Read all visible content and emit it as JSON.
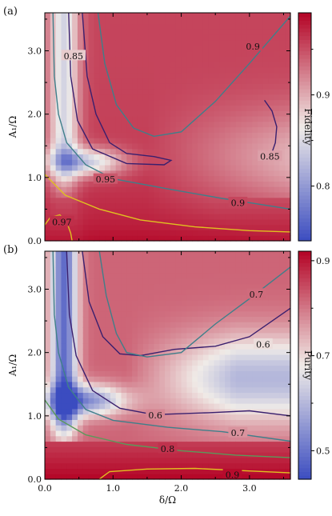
{
  "colors": {
    "map_low": "#3b4cc0",
    "map_mid": "#f0ece8",
    "map_high": "#b40426",
    "contour_low": "#3a1f6e",
    "contour_mid": "#3f7f8a",
    "contour_green": "#5a9a5a",
    "contour_high": "#e0c020"
  },
  "chart_data": [
    {
      "type": "heatmap",
      "panel_label": "(a)",
      "xlabel": "",
      "ylabel": "A₁/Ω",
      "colorbar_label": "Fidelity",
      "xlim": [
        0.0,
        3.6
      ],
      "ylim": [
        0.0,
        3.6
      ],
      "color_range": [
        0.74,
        0.99
      ],
      "x_ticks": [],
      "y_ticks": [
        {
          "value": 0.0,
          "label": "0.0"
        },
        {
          "value": 1.0,
          "label": "1.0"
        },
        {
          "value": 2.0,
          "label": "2.0"
        },
        {
          "value": 3.0,
          "label": "3.0"
        }
      ],
      "colorbar_ticks": [
        {
          "value": 0.8,
          "label": "0.8"
        },
        {
          "value": 0.85,
          "label": ""
        },
        {
          "value": 0.9,
          "label": "0.9"
        },
        {
          "value": 0.95,
          "label": ""
        }
      ],
      "contour_labels": [
        {
          "text": "0.85",
          "x": 0.42,
          "y": 2.92
        },
        {
          "text": "0.9",
          "x": 3.05,
          "y": 3.07
        },
        {
          "text": "0.85",
          "x": 3.3,
          "y": 1.33
        },
        {
          "text": "0.95",
          "x": 0.89,
          "y": 0.97
        },
        {
          "text": "0.9",
          "x": 2.83,
          "y": 0.6
        },
        {
          "text": "0.97",
          "x": 0.25,
          "y": 0.3
        }
      ]
    },
    {
      "type": "heatmap",
      "panel_label": "(b)",
      "xlabel": "δ/Ω",
      "ylabel": "A₁/Ω",
      "colorbar_label": "Purity",
      "xlim": [
        0.0,
        3.6
      ],
      "ylim": [
        0.0,
        3.6
      ],
      "color_range": [
        0.44,
        0.92
      ],
      "x_ticks": [
        {
          "value": 0.0,
          "label": "0.0"
        },
        {
          "value": 1.0,
          "label": "1.0"
        },
        {
          "value": 2.0,
          "label": "2.0"
        },
        {
          "value": 3.0,
          "label": "3.0"
        }
      ],
      "y_ticks": [
        {
          "value": 0.0,
          "label": "0.0"
        },
        {
          "value": 1.0,
          "label": "1.0"
        },
        {
          "value": 2.0,
          "label": "2.0"
        },
        {
          "value": 3.0,
          "label": "3.0"
        }
      ],
      "colorbar_ticks": [
        {
          "value": 0.5,
          "label": "0.5"
        },
        {
          "value": 0.6,
          "label": ""
        },
        {
          "value": 0.7,
          "label": "0.7"
        },
        {
          "value": 0.8,
          "label": ""
        },
        {
          "value": 0.9,
          "label": "0.9"
        }
      ],
      "contour_labels": [
        {
          "text": "0.7",
          "x": 3.1,
          "y": 2.92
        },
        {
          "text": "0.6",
          "x": 3.2,
          "y": 2.13
        },
        {
          "text": "0.6",
          "x": 1.62,
          "y": 1.01
        },
        {
          "text": "0.7",
          "x": 2.83,
          "y": 0.73
        },
        {
          "text": "0.8",
          "x": 1.8,
          "y": 0.48
        },
        {
          "text": "0.9",
          "x": 2.75,
          "y": 0.07
        }
      ]
    }
  ]
}
